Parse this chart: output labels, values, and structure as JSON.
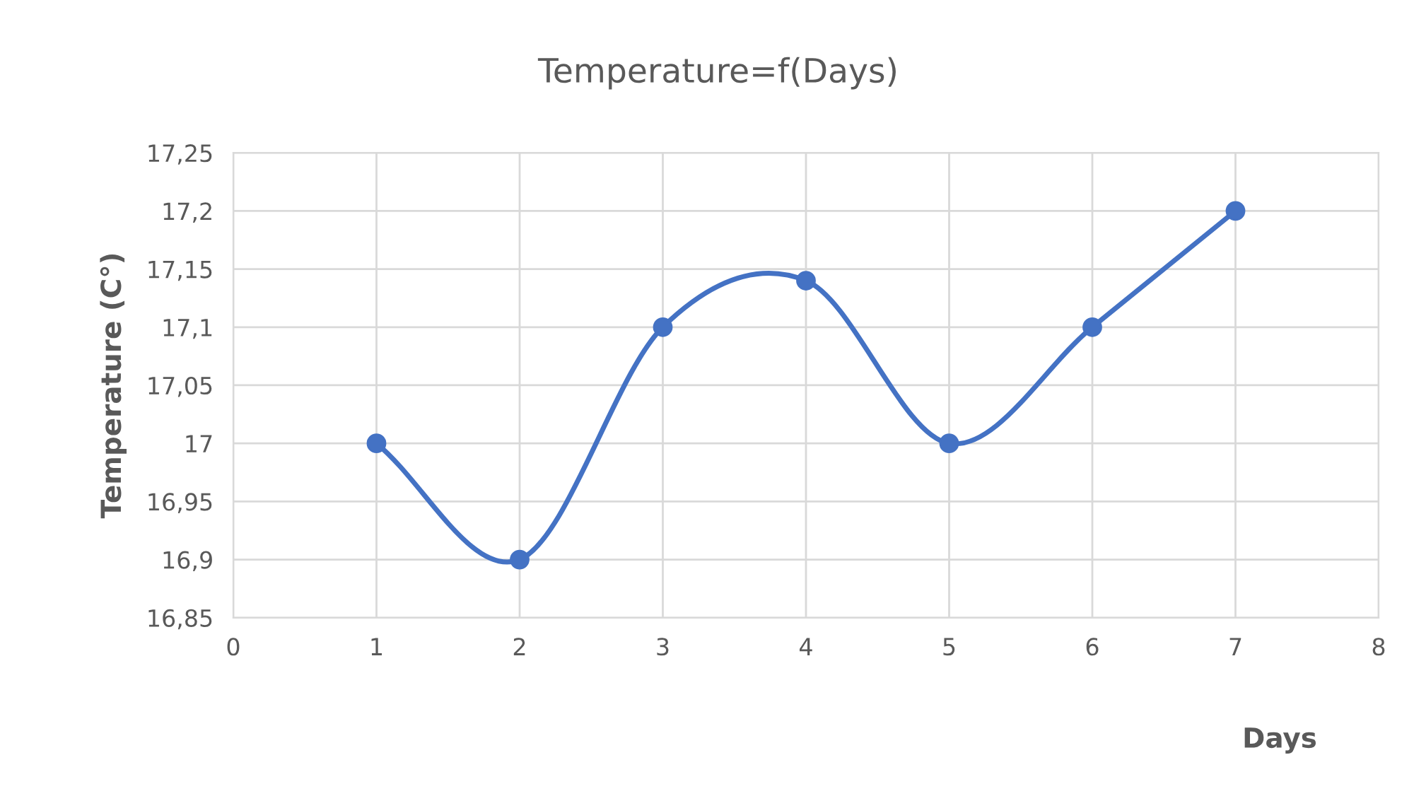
{
  "chart_data": {
    "type": "line",
    "title": "Temperature=f(Days)",
    "xlabel": "Days",
    "ylabel": "Temperature (C°)",
    "x": [
      1,
      2,
      3,
      4,
      5,
      6,
      7
    ],
    "series": [
      {
        "color": "#4472c4",
        "values": [
          17,
          16.9,
          17.1,
          17.14,
          17,
          17.1,
          17.2
        ]
      }
    ],
    "xlim": [
      0,
      8
    ],
    "xticks": [
      0,
      1,
      2,
      3,
      4,
      5,
      6,
      7,
      8
    ],
    "ylim": [
      16.85,
      17.25
    ],
    "yticks": [
      {
        "value": 16.85,
        "label": "16,85"
      },
      {
        "value": 16.9,
        "label": "16,9"
      },
      {
        "value": 16.95,
        "label": "16,95"
      },
      {
        "value": 17,
        "label": "17"
      },
      {
        "value": 17.05,
        "label": "17,05"
      },
      {
        "value": 17.1,
        "label": "17,1"
      },
      {
        "value": 17.15,
        "label": "17,15"
      },
      {
        "value": 17.2,
        "label": "17,2"
      },
      {
        "value": 17.25,
        "label": "17,25"
      }
    ],
    "grid": true,
    "marker": "circle",
    "line_style": "solid"
  }
}
